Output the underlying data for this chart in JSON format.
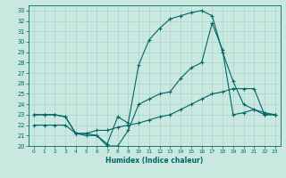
{
  "xlabel": "Humidex (Indice chaleur)",
  "bg_color": "#c8e8e0",
  "line_color": "#006666",
  "grid_color": "#a8ccc8",
  "xlim": [
    -0.5,
    23.5
  ],
  "ylim": [
    20.0,
    33.5
  ],
  "yticks": [
    20,
    21,
    22,
    23,
    24,
    25,
    26,
    27,
    28,
    29,
    30,
    31,
    32,
    33
  ],
  "xticks": [
    0,
    1,
    2,
    3,
    4,
    5,
    6,
    7,
    8,
    9,
    10,
    11,
    12,
    13,
    14,
    15,
    16,
    17,
    18,
    19,
    20,
    21,
    22,
    23
  ],
  "line1_x": [
    0,
    1,
    2,
    3,
    4,
    5,
    6,
    7,
    8,
    9,
    10,
    11,
    12,
    13,
    14,
    15,
    16,
    17,
    18,
    19,
    20,
    21,
    22,
    23
  ],
  "line1_y": [
    23.0,
    23.0,
    23.0,
    22.8,
    21.2,
    21.2,
    21.0,
    20.2,
    22.8,
    22.2,
    27.8,
    30.2,
    31.3,
    32.2,
    32.5,
    32.8,
    33.0,
    32.5,
    29.0,
    26.2,
    24.0,
    23.5,
    23.0,
    23.0
  ],
  "line2_x": [
    0,
    1,
    2,
    3,
    4,
    5,
    6,
    7,
    8,
    9,
    10,
    11,
    12,
    13,
    14,
    15,
    16,
    17,
    18,
    19,
    20,
    21,
    22,
    23
  ],
  "line2_y": [
    23.0,
    23.0,
    23.0,
    22.8,
    21.2,
    21.0,
    21.0,
    20.0,
    20.0,
    21.5,
    24.0,
    24.5,
    25.0,
    25.2,
    26.5,
    27.5,
    28.0,
    31.8,
    29.2,
    23.0,
    23.2,
    23.5,
    23.2,
    23.0
  ],
  "line3_x": [
    0,
    1,
    2,
    3,
    4,
    5,
    6,
    7,
    8,
    9,
    10,
    11,
    12,
    13,
    14,
    15,
    16,
    17,
    18,
    19,
    20,
    21,
    22,
    23
  ],
  "line3_y": [
    22.0,
    22.0,
    22.0,
    22.0,
    21.2,
    21.2,
    21.5,
    21.5,
    21.8,
    22.0,
    22.2,
    22.5,
    22.8,
    23.0,
    23.5,
    24.0,
    24.5,
    25.0,
    25.2,
    25.5,
    25.5,
    25.5,
    23.0,
    23.0
  ],
  "xlabel_fontsize": 5.5,
  "tick_fontsize": 5.0,
  "lw": 0.8,
  "marker_size": 3
}
